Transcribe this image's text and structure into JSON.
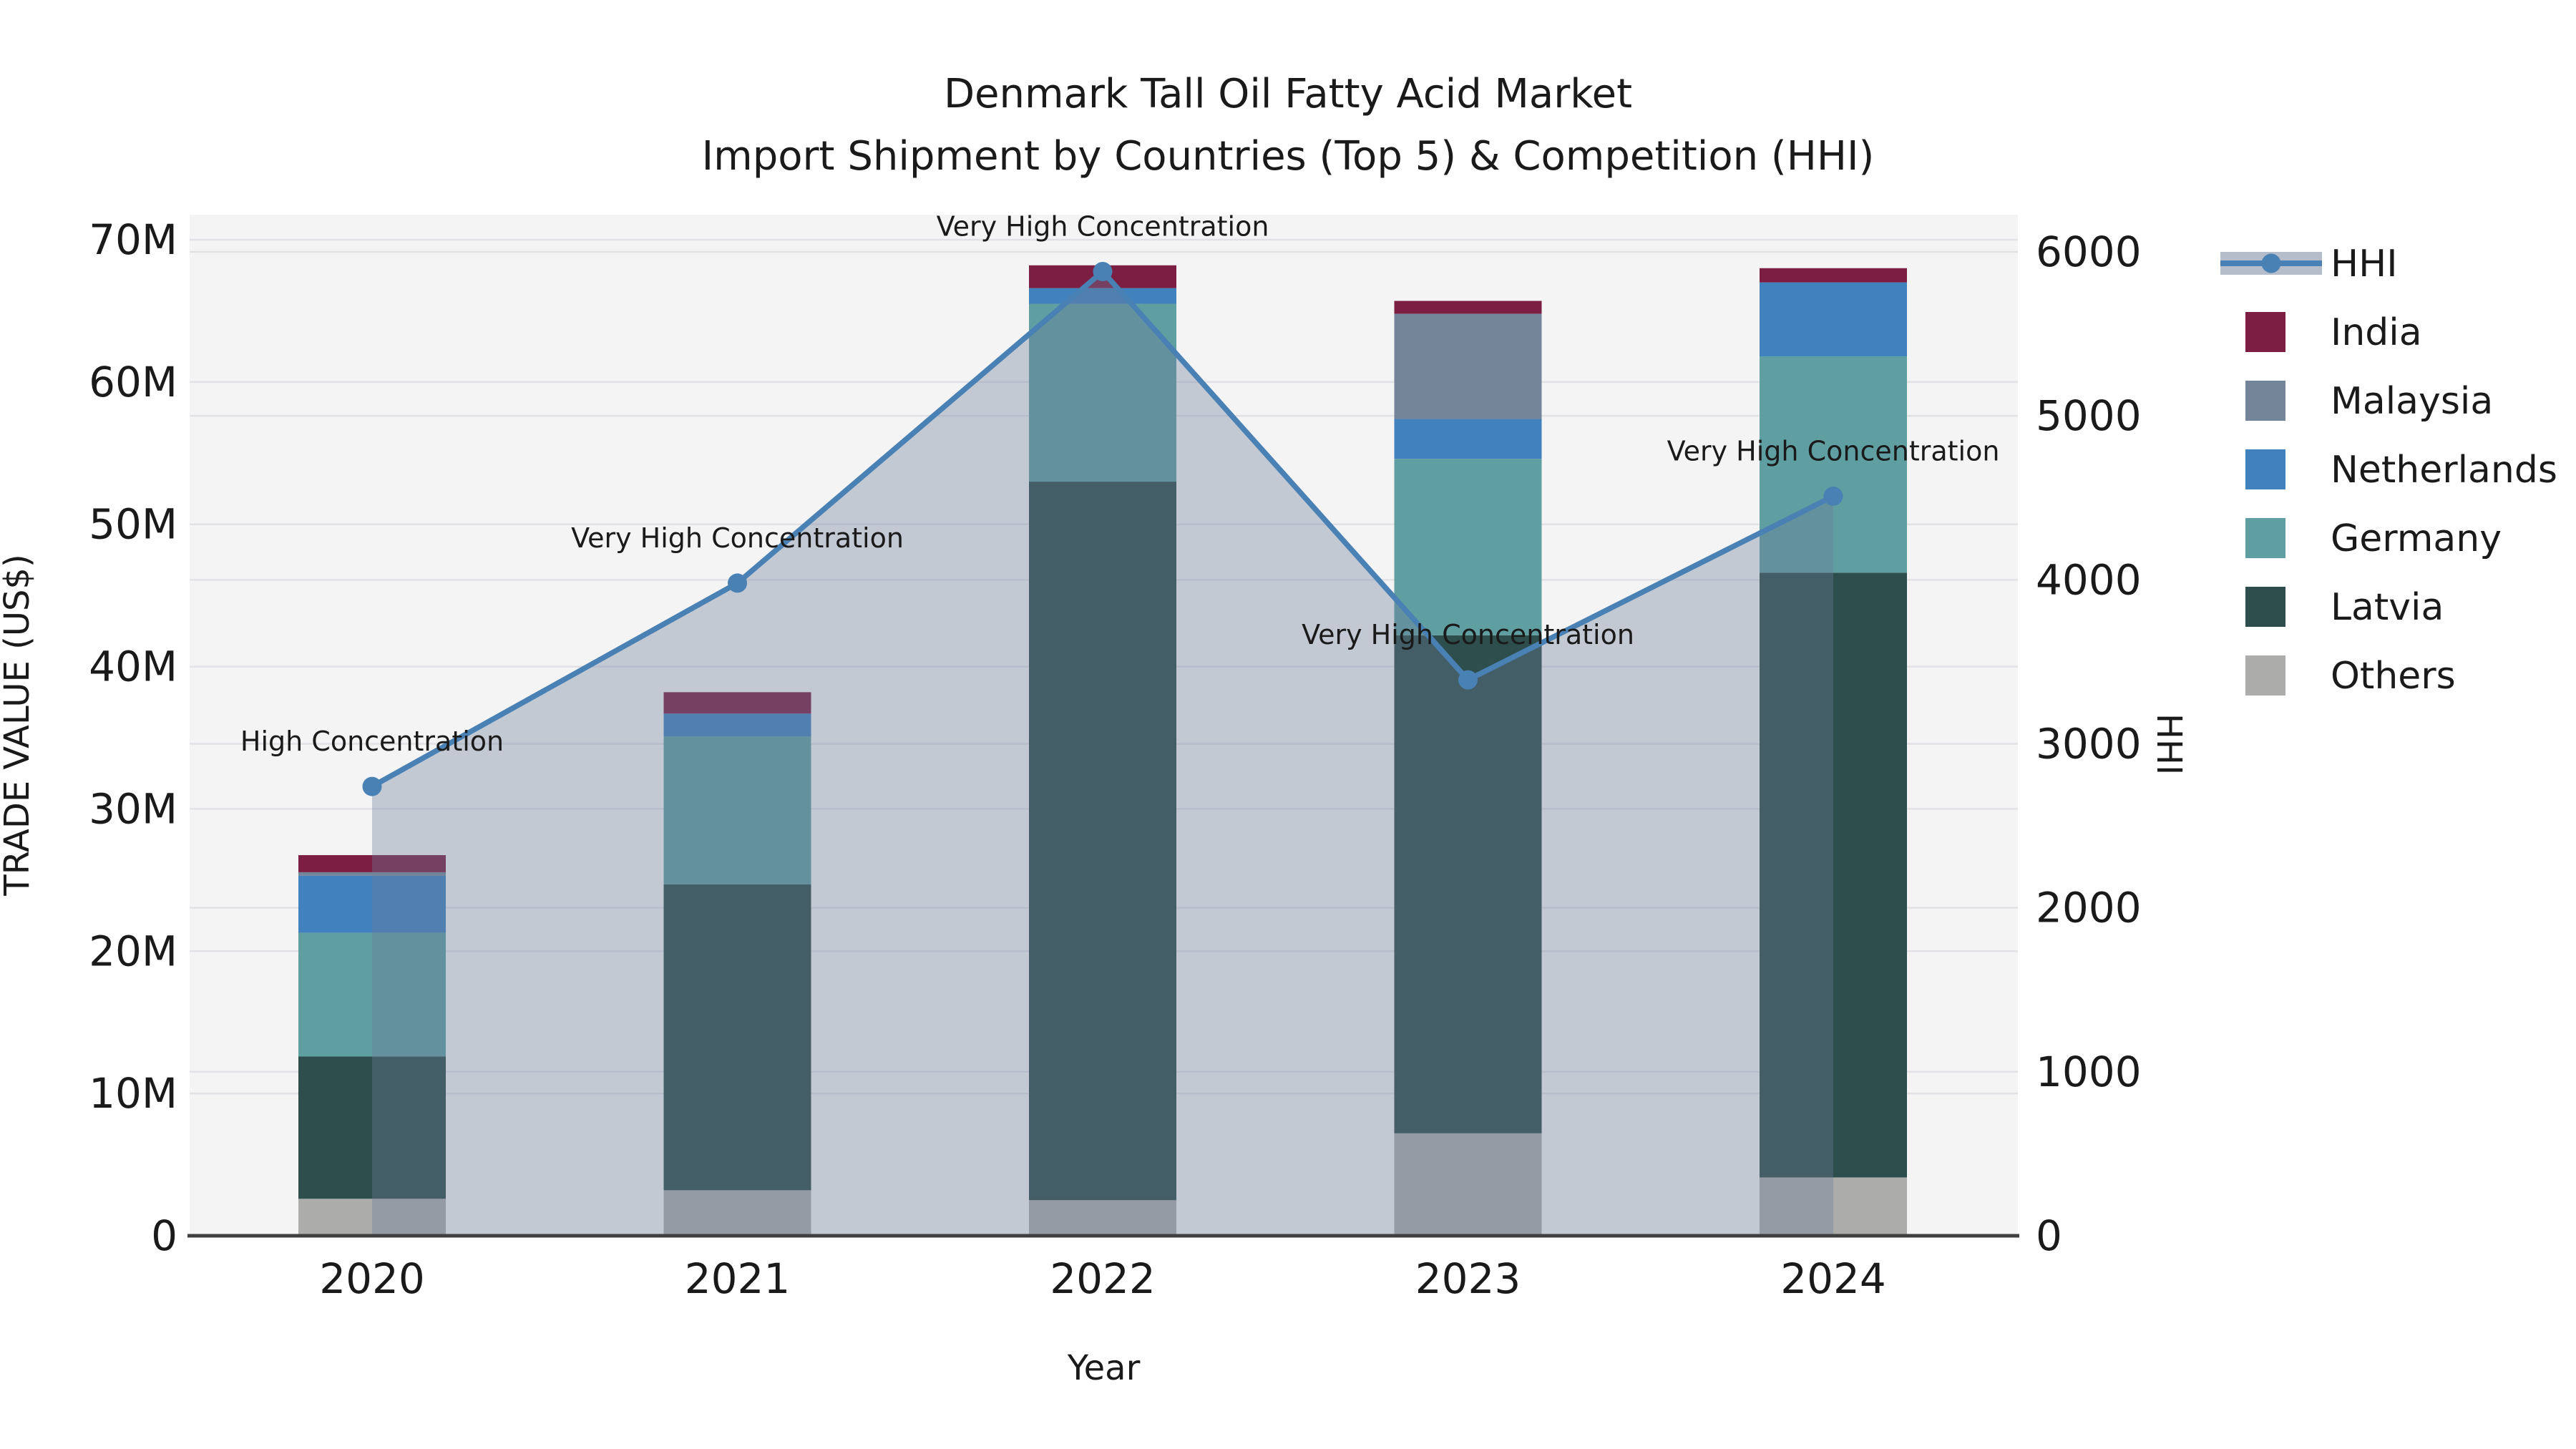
{
  "chart_data": {
    "type": "bar",
    "subtype": "stacked-bars-with-line-overlay",
    "title_line1": "Denmark Tall Oil Fatty Acid Market",
    "title_line2": "Import Shipment by Countries (Top 5) & Competition (HHI)",
    "xlabel": "Year",
    "ylabel_left": "TRADE VALUE (US$)",
    "ylabel_right": "HHI",
    "categories": [
      "2020",
      "2021",
      "2022",
      "2023",
      "2024"
    ],
    "value_units": "US$ millions",
    "series": [
      {
        "name": "Others",
        "color": "#ACACAB",
        "values": [
          2.6,
          3.2,
          2.5,
          7.2,
          4.1
        ]
      },
      {
        "name": "Latvia",
        "color": "#2E4E4D",
        "values": [
          10.0,
          21.5,
          50.5,
          35.0,
          42.5
        ]
      },
      {
        "name": "Germany",
        "color": "#5F9FA2",
        "values": [
          8.7,
          10.4,
          12.5,
          12.4,
          15.2
        ]
      },
      {
        "name": "Netherlands",
        "color": "#4181BE",
        "values": [
          4.0,
          1.6,
          1.1,
          2.8,
          5.2
        ]
      },
      {
        "name": "Malaysia",
        "color": "#74859A",
        "values": [
          0.25,
          0.0,
          0.0,
          7.4,
          0.0
        ]
      },
      {
        "name": "India",
        "color": "#7B1E42",
        "values": [
          1.2,
          1.5,
          1.6,
          0.9,
          1.0
        ]
      }
    ],
    "hhi_line": {
      "name": "HHI",
      "color": "#4A81B4",
      "area_fill": "rgba(108,124,152,0.36)",
      "values": [
        2740,
        3980,
        5880,
        3390,
        4510
      ]
    },
    "annotations": [
      {
        "text": "High Concentration"
      },
      {
        "text": "Very High Concentration"
      },
      {
        "text": "Very High Concentration"
      },
      {
        "text": "Very High Concentration"
      },
      {
        "text": "Very High Concentration"
      }
    ],
    "y_left": {
      "min": 0,
      "max": 70000000,
      "ticks": [
        "0",
        "10M",
        "20M",
        "30M",
        "40M",
        "50M",
        "60M",
        "70M"
      ]
    },
    "y_right": {
      "min": 0,
      "max": 6000,
      "ticks": [
        "0",
        "1000",
        "2000",
        "3000",
        "4000",
        "5000",
        "6000"
      ]
    },
    "grid": true,
    "legend_position": "right",
    "legend_items": [
      {
        "label": "HHI",
        "type": "line",
        "color": "#4A81B4",
        "band": "rgba(108,124,152,0.5)"
      },
      {
        "label": "India",
        "type": "swatch",
        "color": "#7B1E42"
      },
      {
        "label": "Malaysia",
        "type": "swatch",
        "color": "#74859A"
      },
      {
        "label": "Netherlands",
        "type": "swatch",
        "color": "#4181BE"
      },
      {
        "label": "Germany",
        "type": "swatch",
        "color": "#5F9FA2"
      },
      {
        "label": "Latvia",
        "type": "swatch",
        "color": "#2E4E4D"
      },
      {
        "label": "Others",
        "type": "swatch",
        "color": "#ACACAB"
      }
    ],
    "colors": {
      "plot_background": "#F4F4F5",
      "gridline": "#E2E2E6",
      "axis_line": "#3F3F3F",
      "text": "#1a1a1a"
    }
  }
}
